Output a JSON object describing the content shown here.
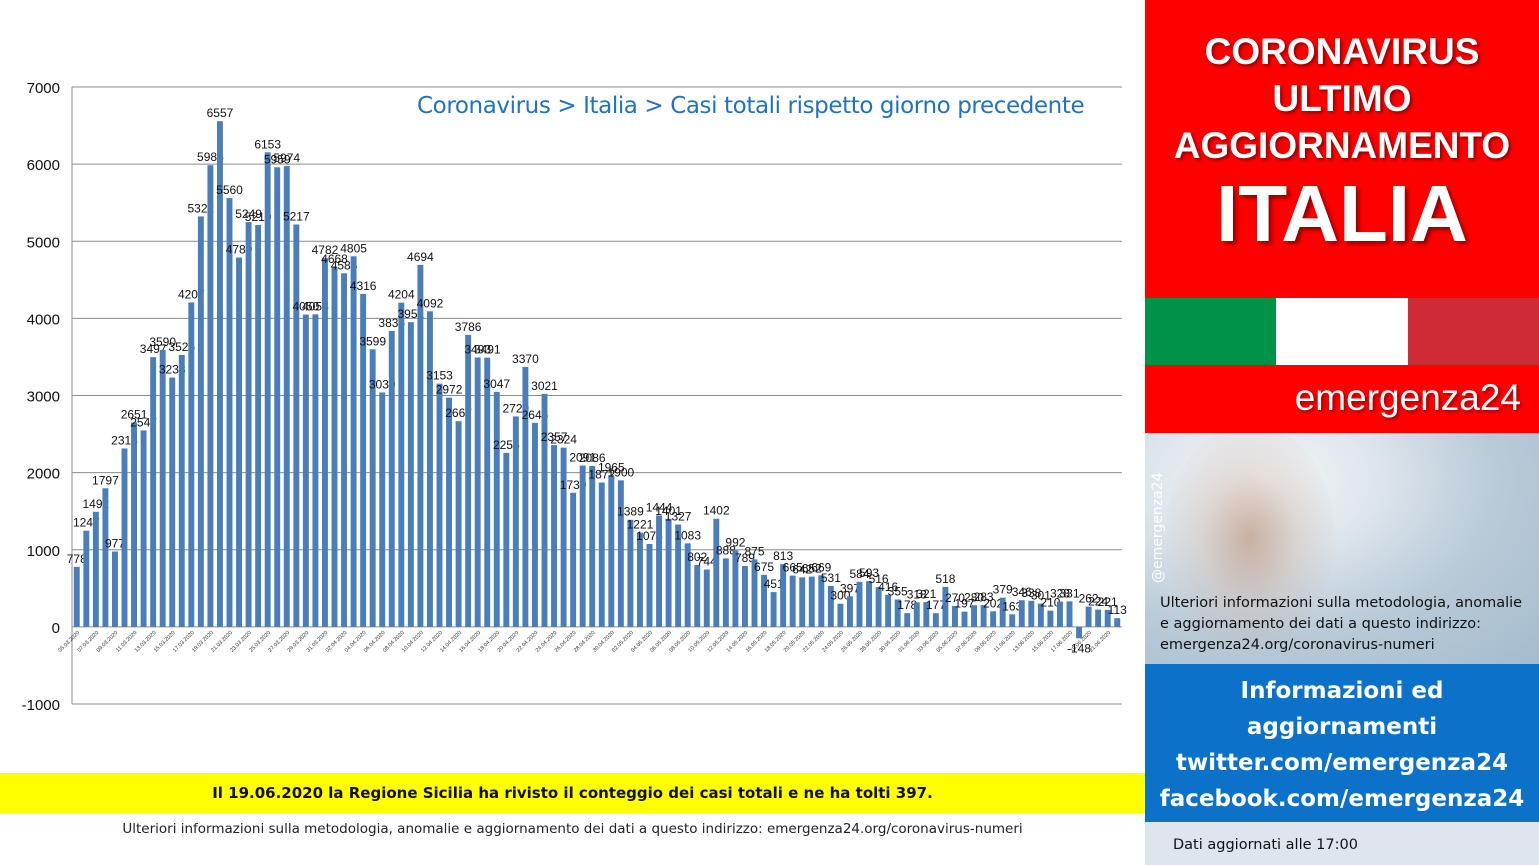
{
  "chart_data": {
    "type": "bar",
    "title": "Coronavirus > Italia > Casi totali rispetto giorno precedente",
    "ylim": [
      -1000,
      7000
    ],
    "yticks": [
      -1000,
      0,
      1000,
      2000,
      3000,
      4000,
      5000,
      6000,
      7000
    ],
    "grid": true,
    "bar_color": "#4a7ebb",
    "x": [
      "05.03.2020",
      "06.03.2020",
      "07.03.2020",
      "08.03.2020",
      "09.03.2020",
      "10.03.2020",
      "11.03.2020",
      "12.03.2020",
      "13.03.2020",
      "14.03.2020",
      "15.03.2020",
      "16.03.2020",
      "17.03.2020",
      "18.03.2020",
      "19.03.2020",
      "20.03.2020",
      "21.03.2020",
      "22.03.2020",
      "23.03.2020",
      "24.03.2020",
      "25.03.2020",
      "26.03.2020",
      "27.03.2020",
      "28.03.2020",
      "29.03.2020",
      "30.03.2020",
      "31.03.2020",
      "01.04.2020",
      "02.04.2020",
      "03.04.2020",
      "04.04.2020",
      "05.04.2020",
      "06.04.2020",
      "07.04.2020",
      "08.04.2020",
      "09.04.2020",
      "10.04.2020",
      "11.04.2020",
      "12.04.2020",
      "13.04.2020",
      "14.04.2020",
      "15.04.2020",
      "16.04.2020",
      "17.04.2020",
      "18.04.2020",
      "19.04.2020",
      "20.04.2020",
      "21.04.2020",
      "22.04.2020",
      "23.04.2020",
      "24.04.2020",
      "25.04.2020",
      "26.04.2020",
      "27.04.2020",
      "28.04.2020",
      "29.04.2020",
      "30.04.2020",
      "01.05.2020",
      "02.05.2020",
      "03.05.2020",
      "04.05.2020",
      "05.05.2020",
      "06.05.2020",
      "07.05.2020",
      "08.05.2020",
      "09.05.2020",
      "10.05.2020",
      "11.05.2020",
      "12.05.2020",
      "13.05.2020",
      "14.05.2020",
      "15.05.2020",
      "16.05.2020",
      "17.05.2020",
      "18.05.2020",
      "19.05.2020",
      "20.05.2020",
      "21.05.2020",
      "22.05.2020",
      "23.05.2020",
      "24.05.2020",
      "25.05.2020",
      "26.05.2020",
      "27.05.2020",
      "28.05.2020",
      "29.05.2020",
      "30.05.2020",
      "31.05.2020",
      "01.06.2020",
      "02.06.2020",
      "03.06.2020",
      "04.06.2020",
      "05.06.2020",
      "06.06.2020",
      "07.06.2020",
      "08.06.2020",
      "09.06.2020",
      "10.06.2020",
      "11.06.2020",
      "12.06.2020",
      "13.06.2020",
      "14.06.2020",
      "15.06.2020",
      "16.06.2020",
      "17.06.2020",
      "18.06.2020",
      "19.06.2020",
      "20.06.2020",
      "21.06.2020",
      "22.06.2020"
    ],
    "values": [
      778,
      1247,
      1492,
      1797,
      977,
      2313,
      2651,
      2547,
      3497,
      3590,
      3233,
      3526,
      4207,
      5322,
      5986,
      6557,
      5560,
      4789,
      5249,
      5210,
      6153,
      5959,
      5974,
      5217,
      4050,
      4053,
      4782,
      4668,
      4585,
      4805,
      4316,
      3599,
      3039,
      3836,
      4204,
      3951,
      4694,
      4092,
      3153,
      2972,
      2667,
      3786,
      3493,
      3491,
      3047,
      2256,
      2729,
      3370,
      2646,
      3021,
      2357,
      2324,
      1739,
      2091,
      2086,
      1872,
      1965,
      1900,
      1389,
      1221,
      1075,
      1444,
      1401,
      1327,
      1083,
      802,
      744,
      1402,
      888,
      992,
      789,
      875,
      675,
      451,
      813,
      665,
      642,
      652,
      669,
      531,
      300,
      397,
      584,
      593,
      516,
      416,
      355,
      178,
      318,
      321,
      177,
      518,
      270,
      197,
      280,
      283,
      202,
      379,
      163,
      346,
      338,
      301,
      210,
      328,
      331,
      -148,
      262,
      224,
      221,
      113
    ]
  },
  "note": {
    "text": "Il 19.06.2020 la Regione Sicilia ha rivisto il conteggio dei casi totali e ne ha tolti 397."
  },
  "footer": {
    "info": "Ulteriori informazioni sulla metodologia, anomalie e aggiornamento dei dati a questo indirizzo: emergenza24.org/coronavirus-numeri"
  },
  "panel": {
    "header_line1": "CORONAVIRUS",
    "header_line2": "ULTIMO",
    "header_line3": "AGGIORNAMENTO",
    "header_country": "ITALIA",
    "brand": "emergenza24",
    "handle": "@emergenza24",
    "info_text": "Ulteriori informazioni sulla metodologia, anomalie e aggiornamento dei dati a questo indirizzo: emergenza24.org/coronavirus-numeri",
    "social_line1": "Informazioni ed",
    "social_line2": "aggiornamenti",
    "social_line3": "twitter.com/emergenza24",
    "social_line4": "facebook.com/emergenza24",
    "updated": "Dati aggiornati alle 17:00",
    "colors": {
      "red": "#ff0000",
      "blue": "#0c72c9",
      "flag_green": "#009246",
      "flag_white": "#ffffff",
      "flag_red": "#ce2b37"
    }
  }
}
